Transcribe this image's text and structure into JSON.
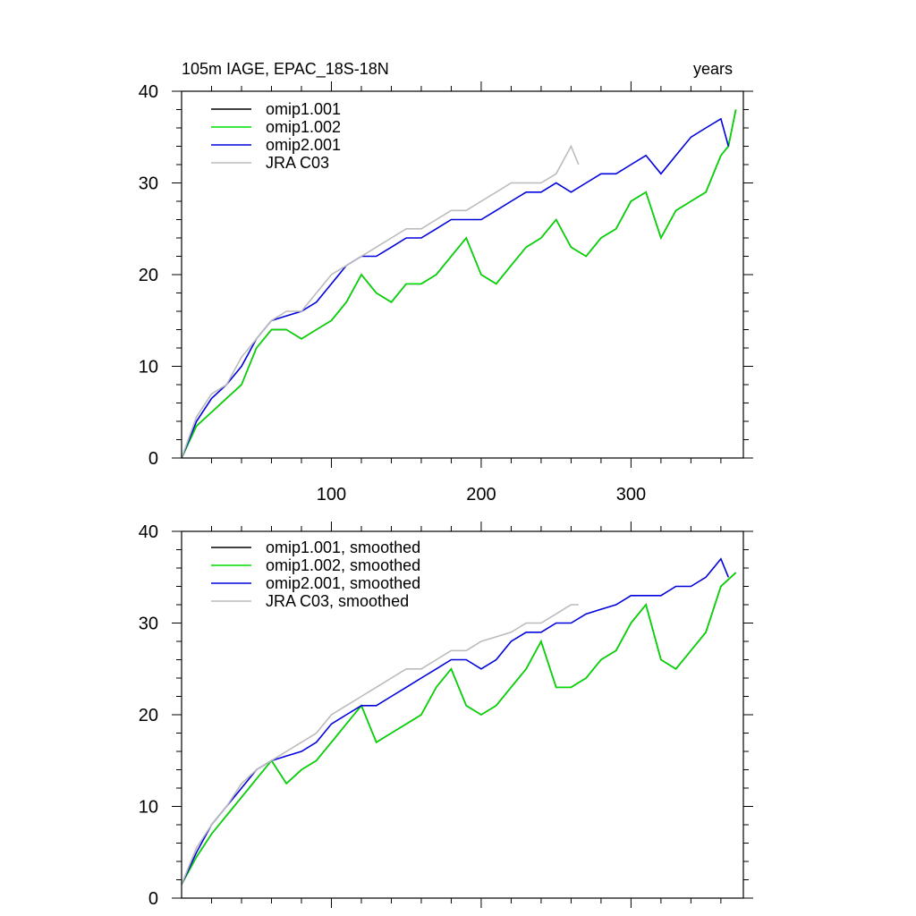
{
  "figure": {
    "title_left": "105m IAGE, EPAC_18S-18N",
    "title_right": "years"
  },
  "chart_data": [
    {
      "type": "line",
      "name": "raw",
      "xlim": [
        0,
        375
      ],
      "ylim": [
        0,
        40
      ],
      "x_ticks": [
        100,
        200,
        300
      ],
      "y_ticks": [
        0,
        10,
        20,
        30,
        40
      ],
      "legend_position": "top-left",
      "series": [
        {
          "name": "omip1.001",
          "color": "#000000",
          "x": [
            0,
            10,
            20,
            30,
            40,
            50,
            60,
            70,
            80,
            90,
            100,
            110,
            120,
            130,
            140,
            150,
            160,
            170,
            180,
            190,
            200,
            210,
            220,
            230,
            240,
            250,
            260,
            270,
            280,
            290,
            300,
            310,
            320,
            330,
            340,
            350,
            360,
            365,
            370
          ],
          "y": [
            0,
            3.5,
            5,
            6.5,
            8,
            12,
            14,
            14,
            13,
            14,
            15,
            17,
            20,
            18,
            17,
            19,
            19,
            20,
            22,
            24,
            20,
            19,
            21,
            23,
            24,
            26,
            23,
            22,
            24,
            25,
            28,
            29,
            24,
            27,
            28,
            29,
            33,
            34,
            38
          ]
        },
        {
          "name": "omip1.002",
          "color": "#00dd00",
          "x": [
            0,
            10,
            20,
            30,
            40,
            50,
            60,
            70,
            80,
            90,
            100,
            110,
            120,
            130,
            140,
            150,
            160,
            170,
            180,
            190,
            200,
            210,
            220,
            230,
            240,
            250,
            260,
            270,
            280,
            290,
            300,
            310,
            320,
            330,
            340,
            350,
            360,
            365,
            370
          ],
          "y": [
            0,
            3.5,
            5,
            6.5,
            8,
            12,
            14,
            14,
            13,
            14,
            15,
            17,
            20,
            18,
            17,
            19,
            19,
            20,
            22,
            24,
            20,
            19,
            21,
            23,
            24,
            26,
            23,
            22,
            24,
            25,
            28,
            29,
            24,
            27,
            28,
            29,
            33,
            34,
            38
          ]
        },
        {
          "name": "omip2.001",
          "color": "#0000dd",
          "x": [
            0,
            10,
            20,
            30,
            40,
            50,
            60,
            70,
            80,
            90,
            100,
            110,
            120,
            130,
            140,
            150,
            160,
            170,
            180,
            190,
            200,
            210,
            220,
            230,
            240,
            250,
            260,
            270,
            280,
            290,
            300,
            310,
            320,
            330,
            340,
            350,
            360,
            365
          ],
          "y": [
            0,
            4,
            6.5,
            8,
            10,
            13,
            15,
            15.5,
            16,
            17,
            19,
            21,
            22,
            22,
            23,
            24,
            24,
            25,
            26,
            26,
            26,
            27,
            28,
            29,
            29,
            30,
            29,
            30,
            31,
            31,
            32,
            33,
            31,
            33,
            35,
            36,
            37,
            34
          ]
        },
        {
          "name": "JRA C03",
          "color": "#bbbbbb",
          "x": [
            0,
            10,
            20,
            30,
            40,
            50,
            60,
            70,
            80,
            90,
            100,
            110,
            120,
            130,
            140,
            150,
            160,
            170,
            180,
            190,
            200,
            210,
            220,
            230,
            240,
            250,
            260,
            265
          ],
          "y": [
            0,
            4.5,
            7,
            8,
            11,
            13,
            15,
            16,
            16,
            18,
            20,
            21,
            22,
            23,
            24,
            25,
            25,
            26,
            27,
            27,
            28,
            29,
            30,
            30,
            30,
            31,
            34,
            32
          ]
        }
      ]
    },
    {
      "type": "line",
      "name": "smoothed",
      "xlim": [
        0,
        375
      ],
      "ylim": [
        0,
        40
      ],
      "x_ticks": [
        100,
        200,
        300
      ],
      "y_ticks": [
        0,
        10,
        20,
        30,
        40
      ],
      "legend_position": "top-left",
      "series": [
        {
          "name": "omip1.001, smoothed",
          "color": "#000000",
          "x": [
            0,
            10,
            20,
            30,
            40,
            50,
            60,
            70,
            80,
            90,
            100,
            110,
            120,
            130,
            140,
            150,
            160,
            170,
            180,
            190,
            200,
            210,
            220,
            230,
            240,
            250,
            260,
            270,
            280,
            290,
            300,
            310,
            320,
            330,
            340,
            350,
            360,
            370
          ],
          "y": [
            1.5,
            4.5,
            7,
            9,
            11,
            13,
            15,
            12.5,
            14,
            15,
            17,
            19,
            21,
            17,
            18,
            19,
            20,
            23,
            25,
            21,
            20,
            21,
            23,
            25,
            28,
            23,
            23,
            24,
            26,
            27,
            30,
            32,
            26,
            25,
            27,
            29,
            34,
            35.5
          ]
        },
        {
          "name": "omip1.002, smoothed",
          "color": "#00dd00",
          "x": [
            0,
            10,
            20,
            30,
            40,
            50,
            60,
            70,
            80,
            90,
            100,
            110,
            120,
            130,
            140,
            150,
            160,
            170,
            180,
            190,
            200,
            210,
            220,
            230,
            240,
            250,
            260,
            270,
            280,
            290,
            300,
            310,
            320,
            330,
            340,
            350,
            360,
            370
          ],
          "y": [
            1.5,
            4.5,
            7,
            9,
            11,
            13,
            15,
            12.5,
            14,
            15,
            17,
            19,
            21,
            17,
            18,
            19,
            20,
            23,
            25,
            21,
            20,
            21,
            23,
            25,
            28,
            23,
            23,
            24,
            26,
            27,
            30,
            32,
            26,
            25,
            27,
            29,
            34,
            35.5
          ]
        },
        {
          "name": "omip2.001, smoothed",
          "color": "#0000dd",
          "x": [
            0,
            10,
            20,
            30,
            40,
            50,
            60,
            70,
            80,
            90,
            100,
            110,
            120,
            130,
            140,
            150,
            160,
            170,
            180,
            190,
            200,
            210,
            220,
            230,
            240,
            250,
            260,
            270,
            280,
            290,
            300,
            310,
            320,
            330,
            340,
            350,
            360,
            365
          ],
          "y": [
            1.5,
            5,
            8,
            10,
            12,
            14,
            15,
            15.5,
            16,
            17,
            19,
            20,
            21,
            21,
            22,
            23,
            24,
            25,
            26,
            26,
            25,
            26,
            28,
            29,
            29,
            30,
            30,
            31,
            31.5,
            32,
            33,
            33,
            33,
            34,
            34,
            35,
            37,
            35
          ]
        },
        {
          "name": "JRA C03, smoothed",
          "color": "#bbbbbb",
          "x": [
            0,
            10,
            20,
            30,
            40,
            50,
            60,
            70,
            80,
            90,
            100,
            110,
            120,
            130,
            140,
            150,
            160,
            170,
            180,
            190,
            200,
            210,
            220,
            230,
            240,
            250,
            260,
            265
          ],
          "y": [
            1.5,
            5.5,
            8,
            10,
            12.5,
            14,
            15,
            16,
            17,
            18,
            20,
            21,
            22,
            23,
            24,
            25,
            25,
            26,
            27,
            27,
            28,
            28.5,
            29,
            30,
            30,
            31,
            32,
            32
          ]
        }
      ]
    }
  ]
}
